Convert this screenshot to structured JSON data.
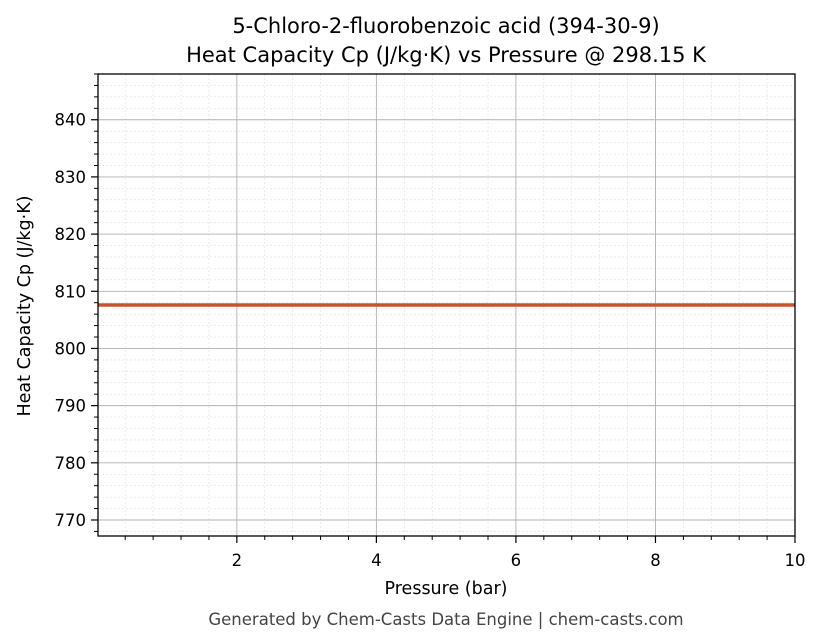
{
  "chart_data": {
    "type": "line",
    "title": "5-Chloro-2-fluorobenzoic acid (394-30-9)",
    "subtitle": "Heat Capacity Cp (J/kg·K) vs Pressure @ 298.15 K",
    "xlabel": "Pressure (bar)",
    "ylabel": "Heat Capacity Cp (J/kg·K)",
    "xlim": [
      0.01,
      10
    ],
    "ylim": [
      767.2,
      848
    ],
    "x_ticks": [
      2,
      4,
      6,
      8,
      10
    ],
    "y_ticks": [
      770,
      780,
      790,
      800,
      810,
      820,
      830,
      840
    ],
    "grid": true,
    "series": [
      {
        "color": "#c8532b",
        "x": [
          0.01,
          1,
          2,
          3,
          4,
          5,
          6,
          7,
          8,
          9,
          10
        ],
        "y": [
          807.6,
          807.6,
          807.6,
          807.6,
          807.6,
          807.6,
          807.6,
          807.6,
          807.6,
          807.6,
          807.6
        ]
      }
    ]
  },
  "footer": "Generated by Chem-Casts Data Engine | chem-casts.com"
}
